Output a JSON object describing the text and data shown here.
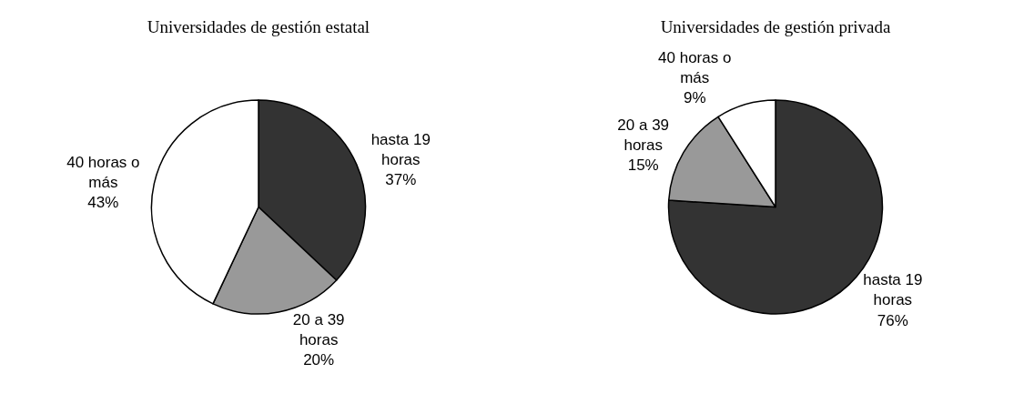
{
  "chart_data": [
    {
      "type": "pie",
      "title": "Universidades de gestión estatal",
      "categories": [
        "hasta 19 horas",
        "20 a 39 horas",
        "40 horas o más"
      ],
      "values": [
        37,
        20,
        43
      ],
      "value_labels": [
        "37%",
        "20%",
        "43%"
      ],
      "colors": [
        "#333333",
        "#999999",
        "#ffffff"
      ],
      "legend": false
    },
    {
      "type": "pie",
      "title": "Universidades de gestión privada",
      "categories": [
        "hasta 19 horas",
        "20 a 39 horas",
        "40 horas o más"
      ],
      "values": [
        76,
        15,
        9
      ],
      "value_labels": [
        "76%",
        "15%",
        "9%"
      ],
      "colors": [
        "#333333",
        "#999999",
        "#ffffff"
      ],
      "legend": false
    }
  ]
}
